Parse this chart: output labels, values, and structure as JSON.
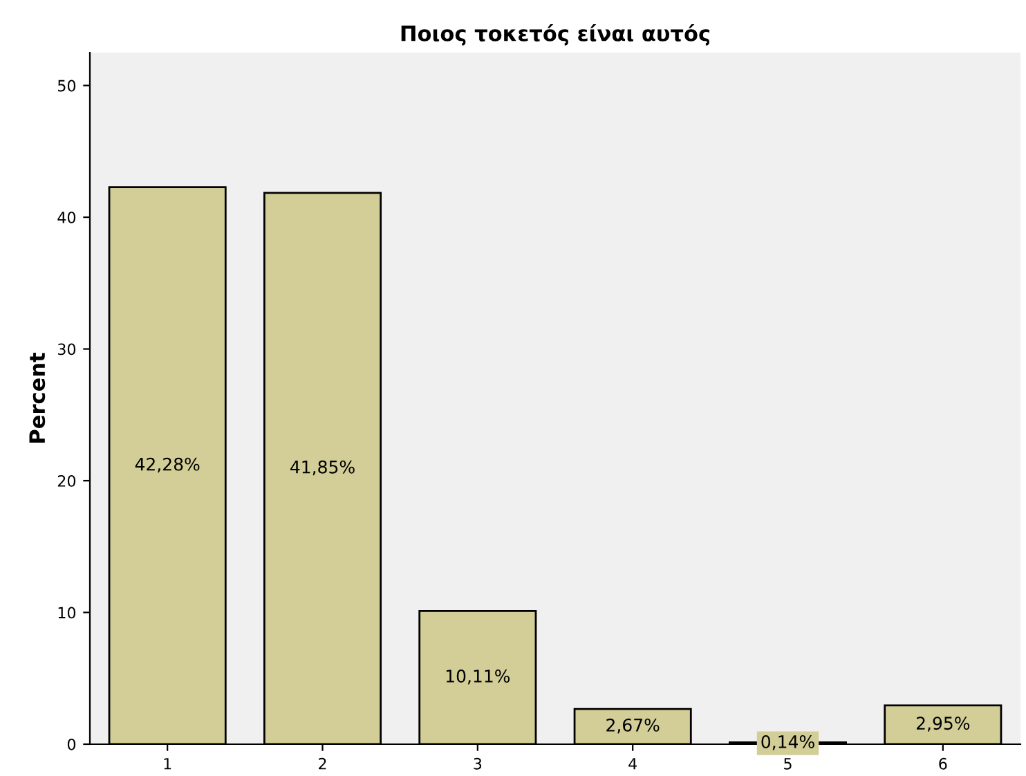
{
  "chart_data": {
    "type": "bar",
    "title": "Ποιος τοκετός είναι αυτός",
    "ylabel": "Percent",
    "categories": [
      "1",
      "2",
      "3",
      "4",
      "5",
      "6"
    ],
    "values": [
      42.28,
      41.85,
      10.11,
      2.67,
      0.14,
      2.95
    ],
    "value_labels": [
      "42,28%",
      "41,85%",
      "10,11%",
      "2,67%",
      "0,14%",
      "2,95%"
    ],
    "color": "#d3ce97",
    "ylim": [
      0,
      52.5
    ],
    "yticks": [
      0,
      10,
      20,
      30,
      40,
      50
    ],
    "grid": false
  }
}
